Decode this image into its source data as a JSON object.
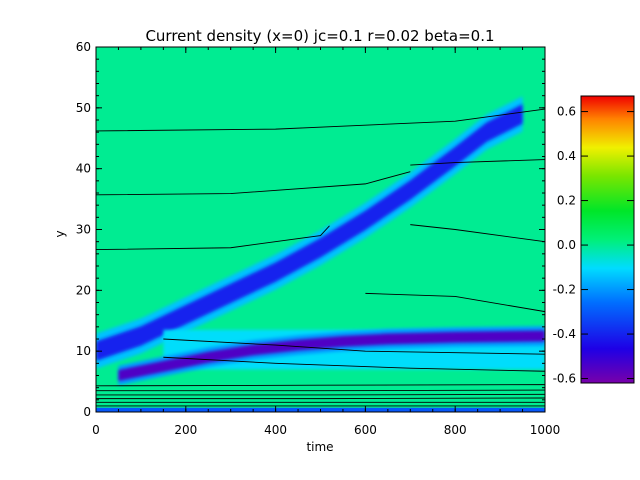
{
  "chart_data": {
    "type": "heatmap",
    "title": "Current density (x=0) jc=0.1 r=0.02 beta=0.1",
    "xlabel": "time",
    "ylabel": "y",
    "xlim": [
      0,
      1000
    ],
    "ylim": [
      0,
      60
    ],
    "x_ticks": [
      "0",
      "200",
      "400",
      "600",
      "800",
      "1000"
    ],
    "y_ticks": [
      "0",
      "10",
      "20",
      "30",
      "40",
      "50",
      "60"
    ],
    "colorbar": {
      "range": [
        -0.62,
        0.67
      ],
      "ticks": [
        "0.6",
        "0.4",
        "0.2",
        "0.0",
        "-0.2",
        "-0.4",
        "-0.6"
      ],
      "colormap": "rainbow",
      "background_value": 0.0
    },
    "features": [
      {
        "name": "diagonal negative band",
        "value": -0.4,
        "path_time": [
          0,
          100,
          200,
          300,
          400,
          500,
          600,
          700,
          800,
          870,
          950
        ],
        "path_y": [
          10.0,
          12.5,
          16.0,
          19.5,
          23.0,
          27.0,
          31.5,
          36.5,
          42.0,
          46.0,
          49.0
        ]
      },
      {
        "name": "lower negative band",
        "value": -0.55,
        "path_time": [
          50,
          150,
          250,
          350,
          450,
          550,
          650,
          800,
          1000
        ],
        "path_y": [
          6.0,
          7.5,
          9.0,
          10.2,
          11.0,
          11.6,
          12.0,
          12.3,
          12.5
        ]
      },
      {
        "name": "weak negative region",
        "value": -0.1,
        "time_range": [
          150,
          1000
        ],
        "y_range": [
          7.0,
          13.5
        ]
      },
      {
        "name": "wall layer",
        "value": -0.3,
        "time_range": [
          0,
          1000
        ],
        "y_range": [
          0.0,
          0.7
        ]
      }
    ],
    "contour_lines": [
      {
        "time": [
          0,
          400,
          800,
          1000
        ],
        "y": [
          46.2,
          46.5,
          47.8,
          49.8
        ]
      },
      {
        "time": [
          0,
          300,
          600,
          700
        ],
        "y": [
          35.7,
          35.9,
          37.5,
          39.5
        ]
      },
      {
        "time": [
          0,
          300,
          500,
          520
        ],
        "y": [
          26.7,
          27.0,
          29.0,
          30.6
        ]
      },
      {
        "time": [
          700,
          800,
          1000
        ],
        "y": [
          40.6,
          41.0,
          41.5
        ]
      },
      {
        "time": [
          700,
          800,
          1000
        ],
        "y": [
          30.8,
          30.0,
          28.0
        ]
      },
      {
        "time": [
          600,
          800,
          1000
        ],
        "y": [
          19.5,
          19.0,
          16.5
        ]
      },
      {
        "time": [
          150,
          400,
          600,
          1000
        ],
        "y": [
          12.0,
          11.0,
          10.0,
          9.5
        ]
      },
      {
        "time": [
          150,
          400,
          700,
          1000
        ],
        "y": [
          9.0,
          8.0,
          7.2,
          6.7
        ]
      },
      {
        "time": [
          0,
          500,
          1000
        ],
        "y": [
          4.3,
          4.4,
          4.5
        ]
      },
      {
        "time": [
          0,
          500,
          1000
        ],
        "y": [
          3.5,
          3.5,
          3.6
        ]
      },
      {
        "time": [
          0,
          500,
          1000
        ],
        "y": [
          2.8,
          2.8,
          2.9
        ]
      },
      {
        "time": [
          0,
          500,
          1000
        ],
        "y": [
          2.2,
          2.2,
          2.3
        ]
      },
      {
        "time": [
          0,
          500,
          1000
        ],
        "y": [
          1.6,
          1.6,
          1.6
        ]
      },
      {
        "time": [
          0,
          500,
          1000
        ],
        "y": [
          1.0,
          1.0,
          1.0
        ]
      }
    ]
  }
}
